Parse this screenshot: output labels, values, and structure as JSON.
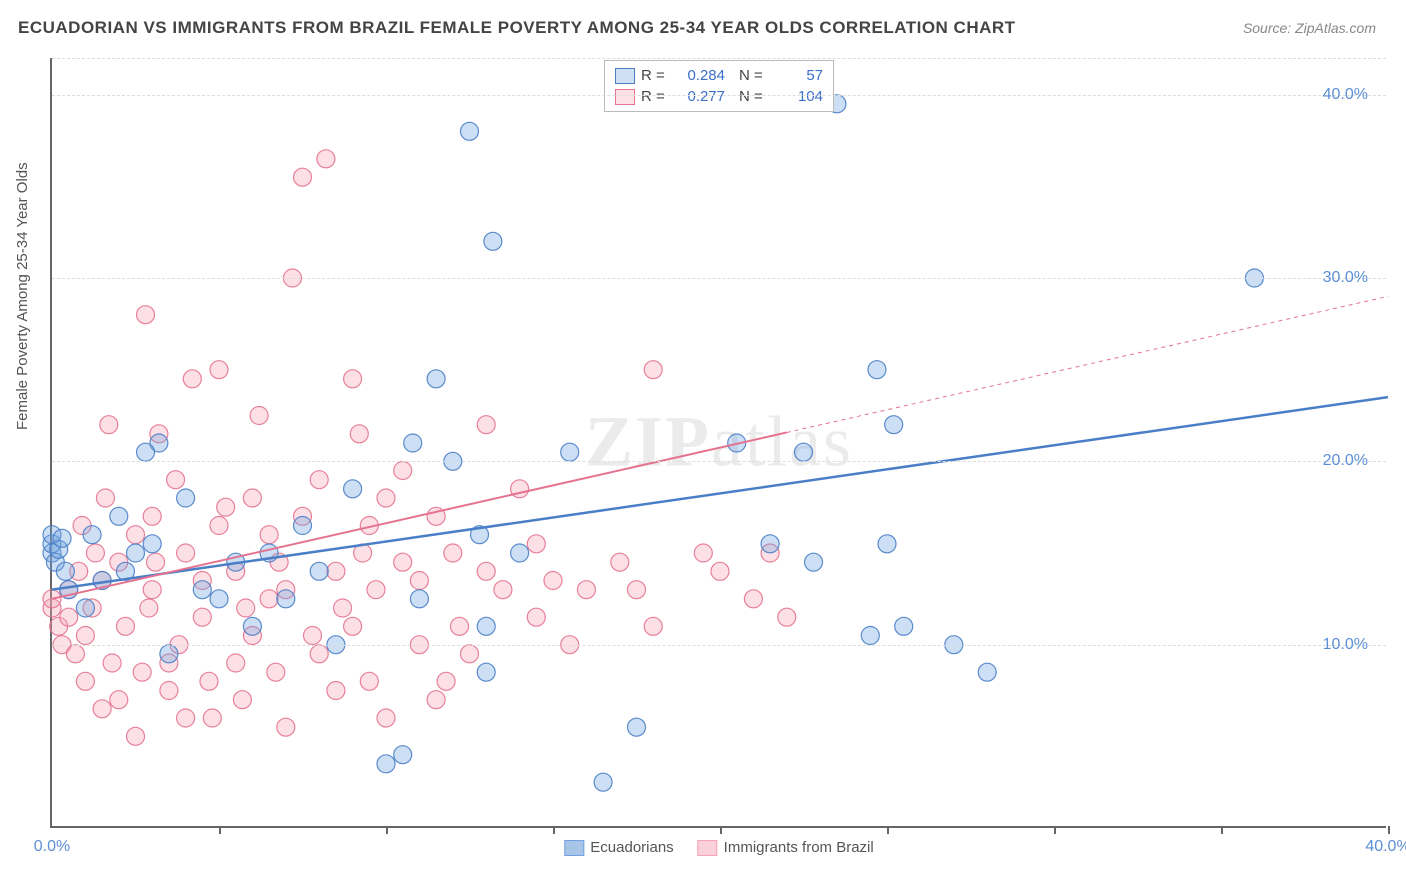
{
  "title": "ECUADORIAN VS IMMIGRANTS FROM BRAZIL FEMALE POVERTY AMONG 25-34 YEAR OLDS CORRELATION CHART",
  "source": "Source: ZipAtlas.com",
  "watermark": "ZIPatlas",
  "ylabel": "Female Poverty Among 25-34 Year Olds",
  "chart": {
    "type": "scatter",
    "background_color": "#ffffff",
    "grid_color": "#dddddd",
    "axis_color": "#666666",
    "tick_label_color": "#5b8fd6",
    "xlim": [
      0,
      40
    ],
    "ylim": [
      0,
      42
    ],
    "xticks": [
      0,
      5,
      10,
      15,
      20,
      25,
      30,
      35,
      40
    ],
    "yticks_grid": [
      10,
      20,
      30,
      40
    ],
    "ytick_labels": [
      "0.0%",
      "10.0%",
      "20.0%",
      "30.0%",
      "40.0%"
    ],
    "ytick_positions": [
      0,
      10,
      20,
      30,
      40
    ],
    "xtick_labels": [
      "0.0%",
      "40.0%"
    ],
    "xtick_label_positions": [
      0,
      40
    ],
    "marker_radius": 9,
    "marker_fill_opacity": 0.35,
    "marker_stroke_opacity": 0.9,
    "marker_stroke_width": 1.2,
    "series": [
      {
        "name": "Ecuadorians",
        "color": "#6fa3e0",
        "stroke": "#4a7fc7",
        "R": "0.284",
        "N": "57",
        "trend": {
          "x1": 0,
          "y1": 13,
          "x2": 40,
          "y2": 23.5,
          "width": 2.5,
          "dash_from_x": null
        },
        "points": [
          [
            0,
            15
          ],
          [
            0,
            15.5
          ],
          [
            0,
            16
          ],
          [
            0.1,
            14.5
          ],
          [
            0.2,
            15.2
          ],
          [
            0.3,
            15.8
          ],
          [
            0.4,
            14
          ],
          [
            3,
            15.5
          ],
          [
            3.2,
            21
          ],
          [
            3.5,
            9.5
          ],
          [
            4,
            18
          ],
          [
            5,
            12.5
          ],
          [
            5.5,
            14.5
          ],
          [
            7,
            12.5
          ],
          [
            8.5,
            10
          ],
          [
            9,
            18.5
          ],
          [
            10,
            3.5
          ],
          [
            10.5,
            4
          ],
          [
            10.8,
            21
          ],
          [
            11,
            12.5
          ],
          [
            11.5,
            24.5
          ],
          [
            12,
            20
          ],
          [
            12.5,
            38
          ],
          [
            13,
            8.5
          ],
          [
            13,
            11
          ],
          [
            13.2,
            32
          ],
          [
            14,
            15
          ],
          [
            15.5,
            20.5
          ],
          [
            16.5,
            2.5
          ],
          [
            17.5,
            5.5
          ],
          [
            20.5,
            21
          ],
          [
            21.5,
            15.5
          ],
          [
            22.5,
            20.5
          ],
          [
            22.8,
            14.5
          ],
          [
            23.5,
            39.5
          ],
          [
            24.5,
            10.5
          ],
          [
            24.7,
            25
          ],
          [
            25,
            15.5
          ],
          [
            25.2,
            22
          ],
          [
            25.5,
            11
          ],
          [
            27,
            10
          ],
          [
            28,
            8.5
          ],
          [
            36,
            30
          ],
          [
            0.5,
            13
          ],
          [
            1,
            12
          ],
          [
            1.2,
            16
          ],
          [
            1.5,
            13.5
          ],
          [
            2,
            17
          ],
          [
            2.2,
            14
          ],
          [
            2.5,
            15
          ],
          [
            2.8,
            20.5
          ],
          [
            4.5,
            13
          ],
          [
            6,
            11
          ],
          [
            6.5,
            15
          ],
          [
            7.5,
            16.5
          ],
          [
            8,
            14
          ],
          [
            12.8,
            16
          ]
        ]
      },
      {
        "name": "Immigrants from Brazil",
        "color": "#f5a5b8",
        "stroke": "#e57390",
        "R": "0.277",
        "N": "104",
        "trend": {
          "x1": 0,
          "y1": 12.5,
          "x2": 40,
          "y2": 29,
          "width": 2,
          "dash_from_x": 22
        },
        "points": [
          [
            0,
            12
          ],
          [
            0,
            12.5
          ],
          [
            0.2,
            11
          ],
          [
            0.3,
            10
          ],
          [
            0.5,
            13
          ],
          [
            0.5,
            11.5
          ],
          [
            0.7,
            9.5
          ],
          [
            0.8,
            14
          ],
          [
            1,
            8
          ],
          [
            1,
            10.5
          ],
          [
            1.2,
            12
          ],
          [
            1.5,
            6.5
          ],
          [
            1.5,
            13.5
          ],
          [
            1.7,
            22
          ],
          [
            1.8,
            9
          ],
          [
            2,
            7
          ],
          [
            2,
            14.5
          ],
          [
            2.2,
            11
          ],
          [
            2.5,
            5
          ],
          [
            2.5,
            16
          ],
          [
            2.7,
            8.5
          ],
          [
            2.8,
            28
          ],
          [
            3,
            13
          ],
          [
            3,
            17
          ],
          [
            3.2,
            21.5
          ],
          [
            3.5,
            7.5
          ],
          [
            3.5,
            9
          ],
          [
            3.7,
            19
          ],
          [
            4,
            6
          ],
          [
            4,
            15
          ],
          [
            4.2,
            24.5
          ],
          [
            4.5,
            11.5
          ],
          [
            4.5,
            13.5
          ],
          [
            4.7,
            8
          ],
          [
            5,
            16.5
          ],
          [
            5,
            25
          ],
          [
            5.2,
            17.5
          ],
          [
            5.5,
            9
          ],
          [
            5.5,
            14
          ],
          [
            5.7,
            7
          ],
          [
            6,
            18
          ],
          [
            6,
            10.5
          ],
          [
            6.2,
            22.5
          ],
          [
            6.5,
            16
          ],
          [
            6.5,
            12.5
          ],
          [
            6.7,
            8.5
          ],
          [
            7,
            5.5
          ],
          [
            7,
            13
          ],
          [
            7.2,
            30
          ],
          [
            7.5,
            17
          ],
          [
            7.5,
            35.5
          ],
          [
            8,
            9.5
          ],
          [
            8,
            19
          ],
          [
            8.2,
            36.5
          ],
          [
            8.5,
            14
          ],
          [
            8.5,
            7.5
          ],
          [
            9,
            11
          ],
          [
            9,
            24.5
          ],
          [
            9.2,
            21.5
          ],
          [
            9.5,
            8
          ],
          [
            9.5,
            16.5
          ],
          [
            9.7,
            13
          ],
          [
            10,
            6
          ],
          [
            10,
            18
          ],
          [
            10.5,
            14.5
          ],
          [
            10.5,
            19.5
          ],
          [
            11,
            10
          ],
          [
            11,
            13.5
          ],
          [
            11.5,
            7
          ],
          [
            11.5,
            17
          ],
          [
            12,
            15
          ],
          [
            12.5,
            9.5
          ],
          [
            13,
            22
          ],
          [
            13,
            14
          ],
          [
            13.5,
            13
          ],
          [
            14,
            18.5
          ],
          [
            14.5,
            11.5
          ],
          [
            14.5,
            15.5
          ],
          [
            15,
            13.5
          ],
          [
            15.5,
            10
          ],
          [
            16,
            13
          ],
          [
            17,
            14.5
          ],
          [
            17.5,
            13
          ],
          [
            18,
            11
          ],
          [
            18,
            25
          ],
          [
            19.5,
            15
          ],
          [
            20,
            14
          ],
          [
            21,
            12.5
          ],
          [
            21.5,
            15
          ],
          [
            22,
            11.5
          ],
          [
            4.8,
            6
          ],
          [
            1.3,
            15
          ],
          [
            2.9,
            12
          ],
          [
            3.8,
            10
          ],
          [
            6.8,
            14.5
          ],
          [
            8.7,
            12
          ],
          [
            11.8,
            8
          ],
          [
            0.9,
            16.5
          ],
          [
            1.6,
            18
          ],
          [
            3.1,
            14.5
          ],
          [
            5.8,
            12
          ],
          [
            7.8,
            10.5
          ],
          [
            9.3,
            15
          ],
          [
            12.2,
            11
          ]
        ]
      }
    ]
  },
  "legend_bottom": [
    {
      "label": "Ecuadorians",
      "fill": "#a8c5e8",
      "stroke": "#6fa3e0"
    },
    {
      "label": "Immigrants from Brazil",
      "fill": "#fad0da",
      "stroke": "#f5a5b8"
    }
  ]
}
